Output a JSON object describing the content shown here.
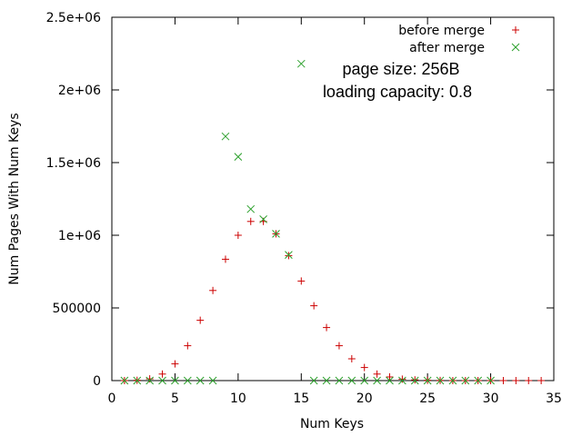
{
  "chart_data": {
    "type": "scatter",
    "title": "",
    "xlabel": "Num Keys",
    "ylabel": "Num Pages With Num Keys",
    "xlim": [
      0,
      35
    ],
    "ylim": [
      0,
      2500000
    ],
    "x_ticks": [
      0,
      5,
      10,
      15,
      20,
      25,
      30,
      35
    ],
    "x_tick_labels": [
      "0",
      "5",
      "10",
      "15",
      "20",
      "25",
      "30",
      "35"
    ],
    "y_ticks": [
      0,
      500000,
      1000000,
      1500000,
      2000000,
      2500000
    ],
    "y_tick_labels": [
      "0",
      "500000",
      "1e+06",
      "1.5e+06",
      "2e+06",
      "2.5e+06"
    ],
    "grid": false,
    "legend_position": "top-right",
    "annotations": [
      "page size: 256B",
      "loading capacity: 0.8"
    ],
    "series": [
      {
        "name": "before merge",
        "marker": "plus",
        "color": "#cc0000",
        "points": [
          [
            1,
            0
          ],
          [
            2,
            2000
          ],
          [
            3,
            12000
          ],
          [
            4,
            45000
          ],
          [
            5,
            115000
          ],
          [
            6,
            240000
          ],
          [
            7,
            415000
          ],
          [
            8,
            620000
          ],
          [
            9,
            835000
          ],
          [
            10,
            1000000
          ],
          [
            11,
            1095000
          ],
          [
            12,
            1095000
          ],
          [
            13,
            1010000
          ],
          [
            14,
            860000
          ],
          [
            15,
            685000
          ],
          [
            16,
            515000
          ],
          [
            17,
            365000
          ],
          [
            18,
            240000
          ],
          [
            19,
            150000
          ],
          [
            20,
            90000
          ],
          [
            21,
            45000
          ],
          [
            22,
            25000
          ],
          [
            23,
            10000
          ],
          [
            24,
            5000
          ],
          [
            25,
            2000
          ],
          [
            26,
            1000
          ],
          [
            27,
            0
          ],
          [
            28,
            0
          ],
          [
            29,
            0
          ],
          [
            30,
            0
          ],
          [
            31,
            0
          ],
          [
            32,
            0
          ],
          [
            33,
            0
          ],
          [
            34,
            0
          ]
        ]
      },
      {
        "name": "after merge",
        "marker": "cross",
        "color": "#2ca02c",
        "points": [
          [
            1,
            0
          ],
          [
            2,
            0
          ],
          [
            3,
            0
          ],
          [
            4,
            0
          ],
          [
            5,
            0
          ],
          [
            6,
            0
          ],
          [
            7,
            0
          ],
          [
            8,
            0
          ],
          [
            9,
            1680000
          ],
          [
            10,
            1540000
          ],
          [
            11,
            1180000
          ],
          [
            12,
            1110000
          ],
          [
            13,
            1010000
          ],
          [
            14,
            865000
          ],
          [
            15,
            2180000
          ],
          [
            16,
            0
          ],
          [
            17,
            0
          ],
          [
            18,
            0
          ],
          [
            19,
            0
          ],
          [
            20,
            0
          ],
          [
            21,
            0
          ],
          [
            22,
            0
          ],
          [
            23,
            0
          ],
          [
            24,
            0
          ],
          [
            25,
            0
          ],
          [
            26,
            0
          ],
          [
            27,
            0
          ],
          [
            28,
            0
          ],
          [
            29,
            0
          ],
          [
            30,
            0
          ]
        ]
      }
    ]
  }
}
